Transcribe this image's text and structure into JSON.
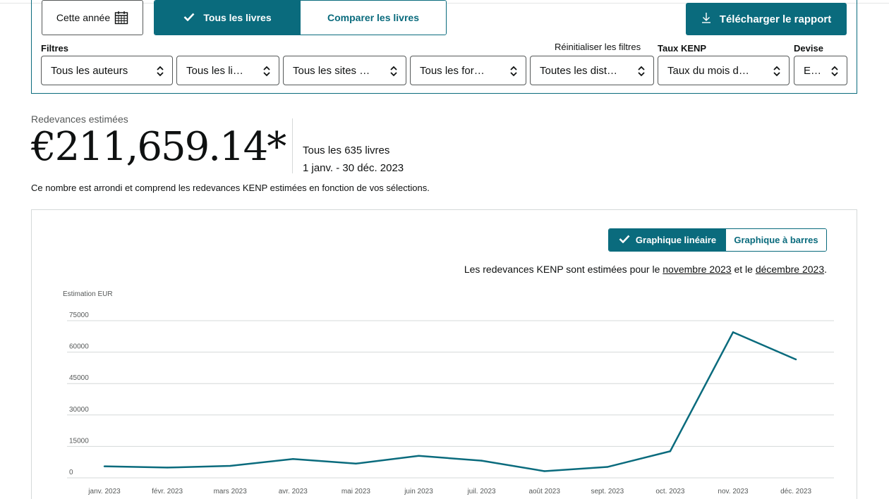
{
  "toolbar": {
    "year_label": "Cette année",
    "all_books_label": "Tous les livres",
    "compare_label": "Comparer les livres",
    "download_label": "Télécharger le rapport"
  },
  "filters": {
    "label": "Filtres",
    "reset_label": "Réinitialiser les filtres",
    "kenp_label": "Taux KENP",
    "currency_label": "Devise",
    "dropdowns": [
      {
        "value": "Tous les auteurs"
      },
      {
        "value": "Tous les li…"
      },
      {
        "value": "Tous les sites …"
      },
      {
        "value": "Tous les for…"
      },
      {
        "value": "Toutes les dist…"
      },
      {
        "value": "Taux du mois d…"
      },
      {
        "value": "E…"
      }
    ]
  },
  "summary": {
    "label": "Redevances estimées",
    "amount": "€211,659.14*",
    "books_count": "Tous les 635 livres",
    "date_range": "1 janv. - 30 déc. 2023",
    "note": "Ce nombre est arrondi et comprend les redevances KENP estimées en fonction de vos sélections."
  },
  "chart_toggle": {
    "line_label": "Graphique linéaire",
    "bar_label": "Graphique à barres"
  },
  "kenp_note": {
    "prefix": "Les redevances KENP sont estimées pour le ",
    "month1": "novembre 2023",
    "middle": " et le ",
    "month2": "décembre 2023",
    "suffix": "."
  },
  "colors": {
    "accent": "#0a6b7d",
    "grid": "#d5d9d9"
  },
  "chart_data": {
    "type": "line",
    "ylabel": "Estimation EUR",
    "ylim": [
      0,
      75000
    ],
    "yticks": [
      0,
      15000,
      30000,
      45000,
      60000,
      75000
    ],
    "grid": true,
    "categories": [
      "janv. 2023",
      "févr. 2023",
      "mars 2023",
      "avr. 2023",
      "mai 2023",
      "juin 2023",
      "juil. 2023",
      "août 2023",
      "sept. 2023",
      "oct. 2023",
      "nov. 2023",
      "déc. 2023"
    ],
    "series": [
      {
        "values": [
          5500,
          4900,
          5700,
          9000,
          6800,
          10500,
          8200,
          3200,
          5200,
          12700,
          69500,
          56500
        ]
      }
    ]
  }
}
